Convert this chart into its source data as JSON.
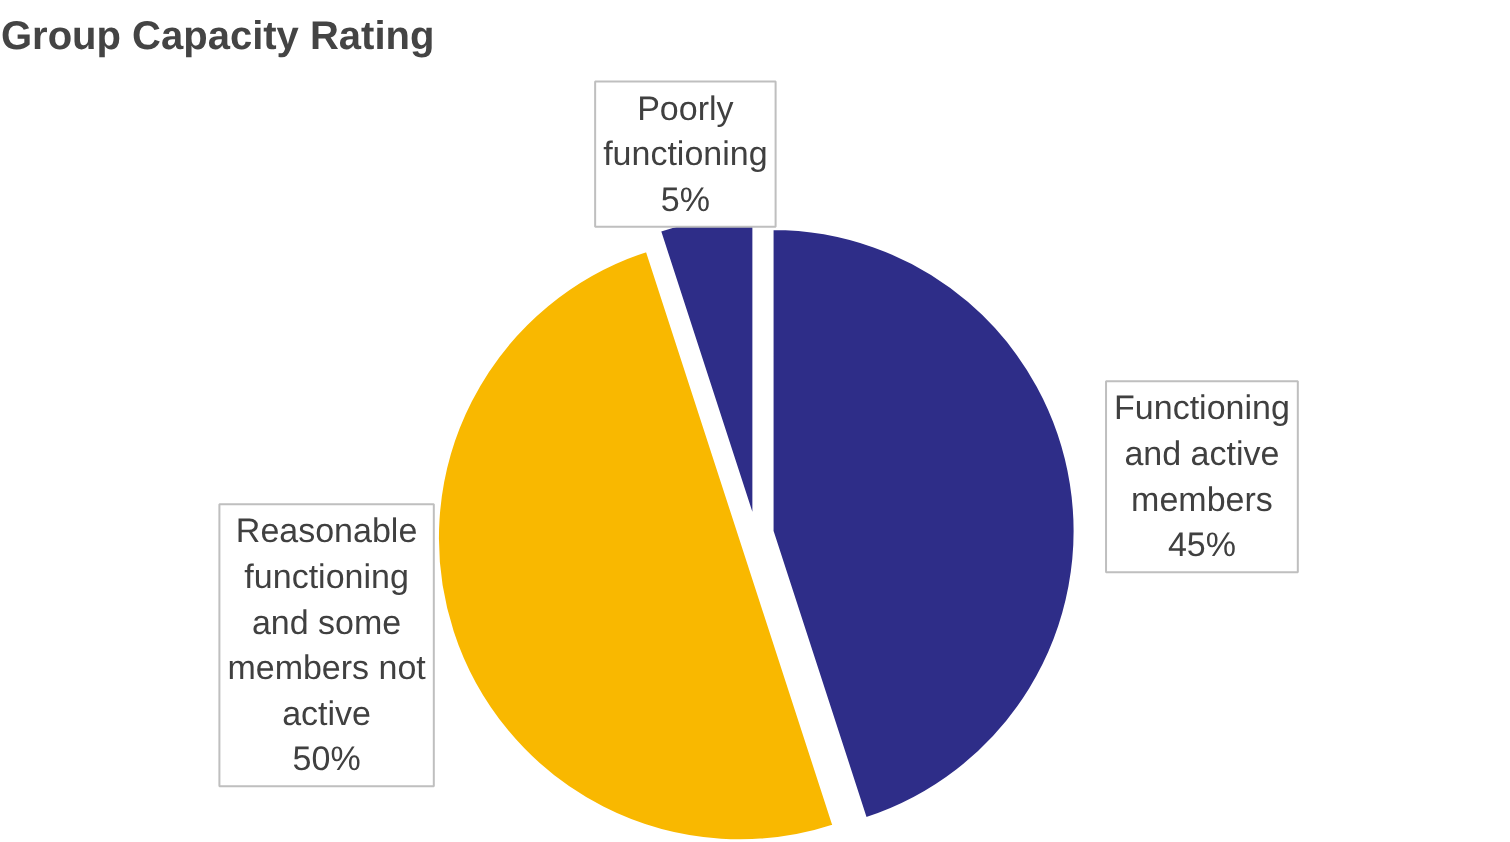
{
  "chart_data": {
    "type": "pie",
    "title": "Group Capacity Rating",
    "categories": [
      "Functioning and active members",
      "Reasonable functioning and some members not active",
      "Poorly functioning"
    ],
    "values": [
      45,
      50,
      5
    ],
    "colors": [
      "#2e2d88",
      "#f9b800",
      "#2e2d88"
    ],
    "value_labels": [
      "45%",
      "50%",
      "5%"
    ]
  }
}
